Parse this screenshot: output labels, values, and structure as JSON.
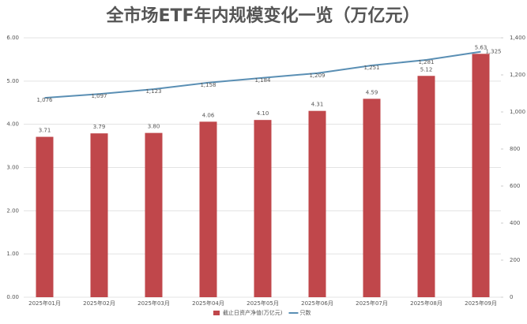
{
  "chart_data": {
    "type": "bar_line",
    "title": "全市场ETF年内规模变化一览（万亿元）",
    "categories": [
      "2025年01月",
      "2025年02月",
      "2025年03月",
      "2025年04月",
      "2025年05月",
      "2025年06月",
      "2025年07月",
      "2025年08月",
      "2025年09月"
    ],
    "series": [
      {
        "name": "截止日资产净值(万亿元)",
        "type": "bar",
        "color": "#c0474b",
        "values": [
          3.71,
          3.79,
          3.8,
          4.06,
          4.1,
          4.31,
          4.59,
          5.12,
          5.63
        ],
        "value_labels": [
          "3.71",
          "3.79",
          "3.80",
          "4.06",
          "4.10",
          "4.31",
          "4.59",
          "5.12",
          "5.63"
        ]
      },
      {
        "name": "只数",
        "type": "line",
        "axis": "y2",
        "color": "#5a8fb4",
        "values": [
          1076,
          1097,
          1123,
          1158,
          1184,
          1209,
          1251,
          1281,
          1325
        ],
        "value_labels": [
          "1,076",
          "1,097",
          "1,123",
          "1,158",
          "1,184",
          "1,209",
          "1,251",
          "1,281",
          "1,325"
        ]
      }
    ],
    "ylim": [
      0,
      6
    ],
    "yticks": [
      {
        "value": 0,
        "label": "0.00"
      },
      {
        "value": 1,
        "label": "1.00"
      },
      {
        "value": 2,
        "label": "2.00"
      },
      {
        "value": 3,
        "label": "3.00"
      },
      {
        "value": 4,
        "label": "4.00"
      },
      {
        "value": 5,
        "label": "5.00"
      },
      {
        "value": 6,
        "label": "6.00"
      }
    ],
    "y2lim": [
      0,
      1400
    ],
    "y2ticks": [
      0,
      200,
      400,
      600,
      800,
      {
        "value": 1000,
        "label": "1,000"
      },
      {
        "value": 1200,
        "label": "1,200"
      },
      {
        "value": 1400,
        "label": "1,400"
      }
    ],
    "grid": true,
    "legend": "bottom"
  }
}
